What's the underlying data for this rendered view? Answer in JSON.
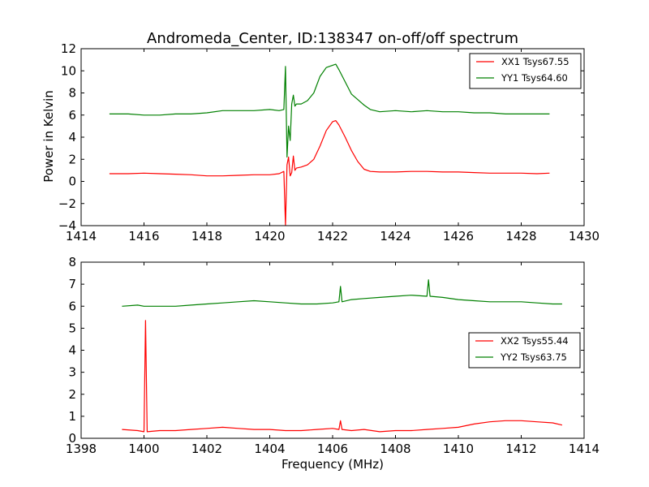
{
  "chart_data": [
    {
      "type": "line",
      "title": "Andromeda_Center, ID:138347 on-off/off spectrum",
      "xlabel": "",
      "ylabel": "Power in Kelvin",
      "xlim": [
        1414,
        1430
      ],
      "ylim": [
        -4,
        12
      ],
      "xticks": [
        "1414",
        "1416",
        "1418",
        "1420",
        "1422",
        "1424",
        "1426",
        "1428",
        "1430"
      ],
      "yticks": [
        "−4",
        "−2",
        "0",
        "2",
        "4",
        "6",
        "8",
        "10",
        "12"
      ],
      "legend_position": "top-right",
      "grid": false,
      "series": [
        {
          "name": "XX1 Tsys67.55",
          "color": "#ff0000",
          "x": [
            1414.9,
            1415.5,
            1416.0,
            1416.5,
            1417.0,
            1417.5,
            1418.0,
            1418.5,
            1419.0,
            1419.5,
            1420.0,
            1420.3,
            1420.45,
            1420.5,
            1420.55,
            1420.6,
            1420.65,
            1420.7,
            1420.75,
            1420.8,
            1420.85,
            1421.0,
            1421.2,
            1421.4,
            1421.6,
            1421.8,
            1422.0,
            1422.1,
            1422.2,
            1422.4,
            1422.6,
            1422.8,
            1423.0,
            1423.2,
            1423.5,
            1424.0,
            1424.5,
            1425.0,
            1425.5,
            1426.0,
            1426.5,
            1427.0,
            1427.5,
            1428.0,
            1428.5,
            1428.9
          ],
          "y": [
            0.7,
            0.7,
            0.75,
            0.7,
            0.65,
            0.6,
            0.5,
            0.5,
            0.55,
            0.6,
            0.6,
            0.7,
            0.9,
            -4.0,
            1.5,
            2.2,
            0.5,
            0.8,
            2.3,
            1.0,
            1.2,
            1.3,
            1.5,
            2.0,
            3.2,
            4.6,
            5.4,
            5.5,
            5.1,
            4.0,
            2.8,
            1.8,
            1.1,
            0.9,
            0.85,
            0.85,
            0.9,
            0.9,
            0.85,
            0.85,
            0.8,
            0.75,
            0.75,
            0.75,
            0.7,
            0.75
          ]
        },
        {
          "name": "YY1 Tsys64.60",
          "color": "#008000",
          "x": [
            1414.9,
            1415.5,
            1416.0,
            1416.5,
            1417.0,
            1417.5,
            1418.0,
            1418.5,
            1419.0,
            1419.5,
            1420.0,
            1420.3,
            1420.45,
            1420.5,
            1420.55,
            1420.6,
            1420.65,
            1420.7,
            1420.75,
            1420.8,
            1420.85,
            1421.0,
            1421.2,
            1421.4,
            1421.6,
            1421.8,
            1422.0,
            1422.1,
            1422.2,
            1422.4,
            1422.6,
            1422.8,
            1423.0,
            1423.2,
            1423.5,
            1424.0,
            1424.5,
            1425.0,
            1425.5,
            1426.0,
            1426.5,
            1427.0,
            1427.5,
            1428.0,
            1428.5,
            1428.9
          ],
          "y": [
            6.1,
            6.1,
            6.0,
            6.0,
            6.1,
            6.1,
            6.2,
            6.4,
            6.4,
            6.4,
            6.5,
            6.4,
            6.5,
            10.4,
            2.2,
            5.0,
            3.7,
            7.0,
            7.8,
            6.8,
            7.0,
            7.0,
            7.3,
            8.0,
            9.5,
            10.3,
            10.5,
            10.6,
            10.1,
            9.0,
            7.9,
            7.4,
            6.9,
            6.5,
            6.3,
            6.4,
            6.3,
            6.4,
            6.3,
            6.3,
            6.2,
            6.2,
            6.1,
            6.1,
            6.1,
            6.1
          ]
        }
      ]
    },
    {
      "type": "line",
      "title": "",
      "xlabel": "Frequency (MHz)",
      "ylabel": "",
      "xlim": [
        1398,
        1414
      ],
      "ylim": [
        0,
        8
      ],
      "xticks": [
        "1398",
        "1400",
        "1402",
        "1404",
        "1406",
        "1408",
        "1410",
        "1412",
        "1414"
      ],
      "yticks": [
        "0",
        "1",
        "2",
        "3",
        "4",
        "5",
        "6",
        "7",
        "8"
      ],
      "legend_position": "center-right",
      "grid": false,
      "series": [
        {
          "name": "XX2 Tsys55.44",
          "color": "#ff0000",
          "x": [
            1399.3,
            1399.8,
            1400.0,
            1400.05,
            1400.1,
            1400.5,
            1401.0,
            1401.5,
            1402.0,
            1402.5,
            1403.0,
            1403.5,
            1404.0,
            1404.5,
            1405.0,
            1405.5,
            1406.0,
            1406.2,
            1406.25,
            1406.3,
            1406.6,
            1407.0,
            1407.5,
            1408.0,
            1408.5,
            1409.0,
            1409.5,
            1410.0,
            1410.5,
            1411.0,
            1411.5,
            1412.0,
            1412.5,
            1413.0,
            1413.3
          ],
          "y": [
            0.4,
            0.35,
            0.3,
            5.35,
            0.3,
            0.35,
            0.35,
            0.4,
            0.45,
            0.5,
            0.45,
            0.4,
            0.4,
            0.35,
            0.35,
            0.4,
            0.45,
            0.4,
            0.8,
            0.4,
            0.35,
            0.4,
            0.3,
            0.35,
            0.35,
            0.4,
            0.45,
            0.5,
            0.65,
            0.75,
            0.8,
            0.8,
            0.75,
            0.7,
            0.6
          ]
        },
        {
          "name": "YY2 Tsys63.75",
          "color": "#008000",
          "x": [
            1399.3,
            1399.8,
            1400.0,
            1400.5,
            1401.0,
            1401.5,
            1402.0,
            1402.5,
            1403.0,
            1403.5,
            1404.0,
            1404.5,
            1405.0,
            1405.5,
            1406.0,
            1406.2,
            1406.25,
            1406.3,
            1406.6,
            1407.0,
            1407.5,
            1408.0,
            1408.5,
            1409.0,
            1409.05,
            1409.1,
            1409.5,
            1410.0,
            1410.5,
            1411.0,
            1411.5,
            1412.0,
            1412.5,
            1413.0,
            1413.3
          ],
          "y": [
            6.0,
            6.05,
            6.0,
            6.0,
            6.0,
            6.05,
            6.1,
            6.15,
            6.2,
            6.25,
            6.2,
            6.15,
            6.1,
            6.1,
            6.15,
            6.2,
            6.9,
            6.2,
            6.3,
            6.35,
            6.4,
            6.45,
            6.5,
            6.45,
            7.2,
            6.45,
            6.4,
            6.3,
            6.25,
            6.2,
            6.2,
            6.2,
            6.15,
            6.1,
            6.1
          ]
        }
      ]
    }
  ]
}
